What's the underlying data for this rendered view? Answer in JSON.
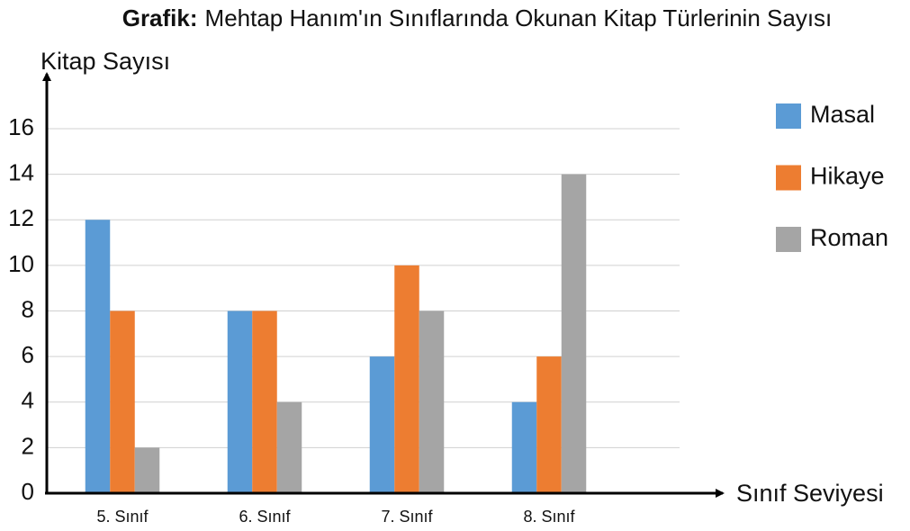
{
  "chart_data": {
    "type": "bar",
    "title_label": "Grafik:",
    "title": "Mehtap Hanım'ın Sınıflarında Okunan Kitap Türlerinin Sayısı",
    "y_label": "Kitap Sayısı",
    "x_label": "Sınıf Seviyesi",
    "categories": [
      "5. Sınıf",
      "6. Sınıf",
      "7. Sınıf",
      "8. Sınıf"
    ],
    "series": [
      {
        "name": "Masal",
        "color": "#5b9bd5",
        "values": [
          12,
          8,
          6,
          4
        ]
      },
      {
        "name": "Hikaye",
        "color": "#ed7d31",
        "values": [
          8,
          8,
          10,
          6
        ]
      },
      {
        "name": "Roman",
        "color": "#a5a5a5",
        "values": [
          2,
          4,
          8,
          14
        ]
      }
    ],
    "ylim": [
      0,
      16
    ],
    "yticks": [
      0,
      2,
      4,
      6,
      8,
      10,
      12,
      14,
      16
    ],
    "grid": true,
    "legend": "right"
  }
}
